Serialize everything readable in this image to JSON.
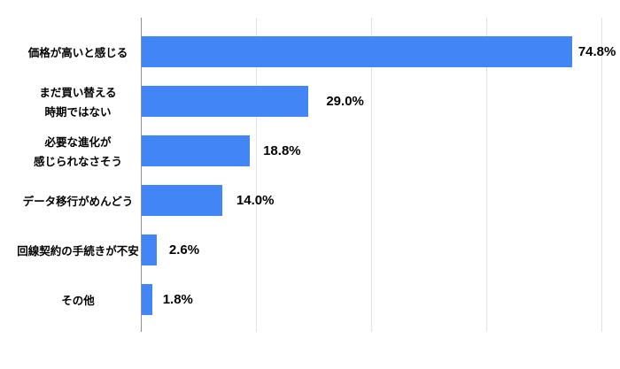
{
  "chart_data": {
    "type": "bar",
    "orientation": "horizontal",
    "title": "",
    "xlabel": "",
    "ylabel": "",
    "categories": [
      [
        "価格が高いと感じる"
      ],
      [
        "まだ買い替える",
        "時期ではない"
      ],
      [
        "必要な進化が",
        "感じられなさそう"
      ],
      [
        "データ移行がめんどう"
      ],
      [
        "回線契約の手続きが不安"
      ],
      [
        "その他"
      ]
    ],
    "values": [
      74.8,
      29.0,
      18.8,
      14.0,
      2.6,
      1.8
    ],
    "value_labels": [
      "74.8%",
      "29.0%",
      "18.8%",
      "14.0%",
      "2.6%",
      "1.8%"
    ],
    "bar_color": "#4285F4",
    "xlim": [
      0,
      80
    ],
    "gridline_interval": 20,
    "grid": true,
    "legend": false
  }
}
